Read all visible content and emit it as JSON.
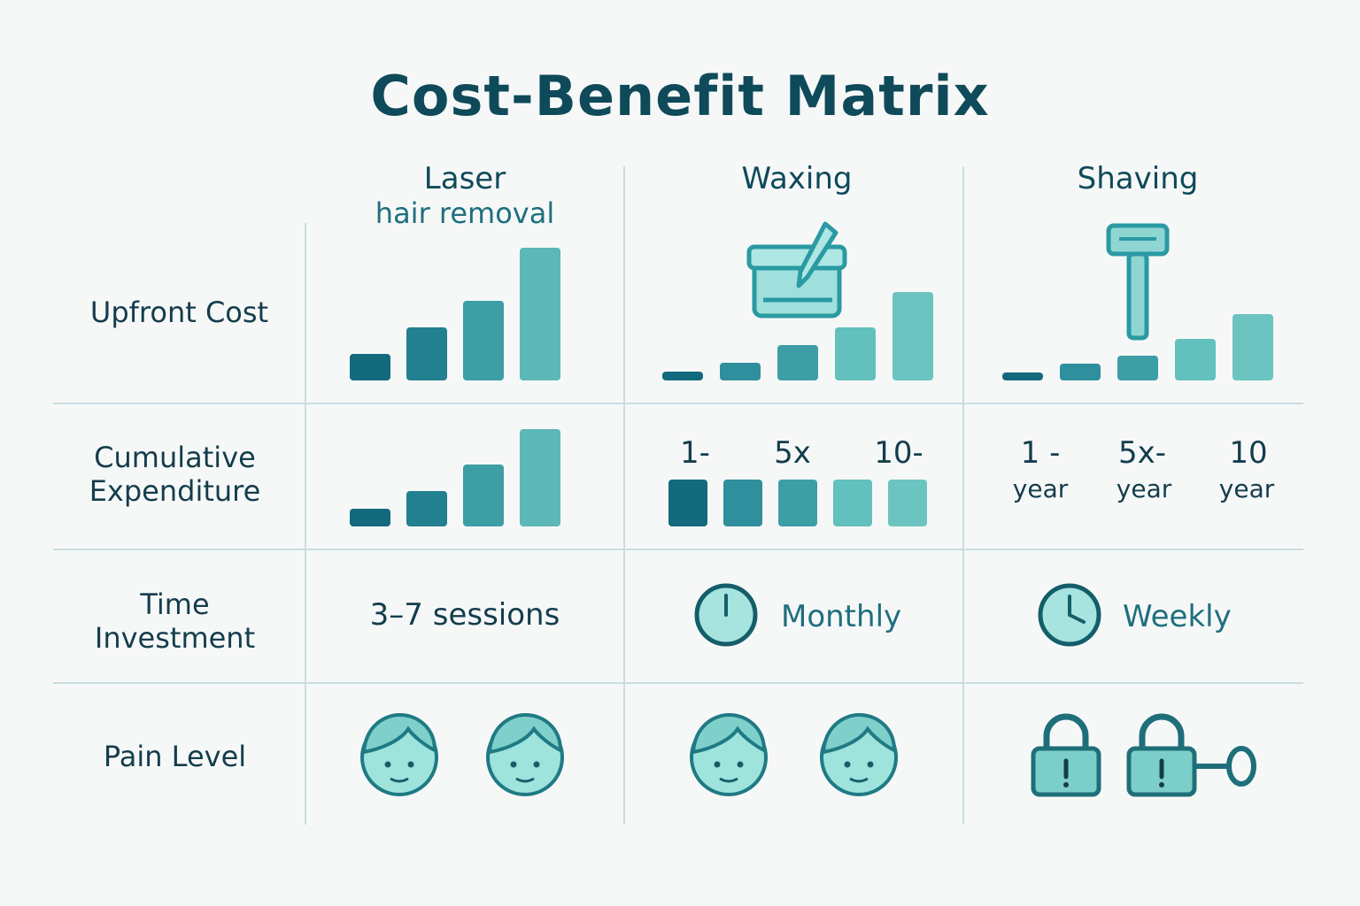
{
  "title": "Cost-Benefit Matrix",
  "columns": [
    {
      "name": "Laser",
      "subtitle": "hair removal"
    },
    {
      "name": "Waxing",
      "subtitle": ""
    },
    {
      "name": "Shaving",
      "subtitle": ""
    }
  ],
  "rows": [
    {
      "label_line1": "Upfront Cost",
      "label_line2": ""
    },
    {
      "label_line1": "Cumulative",
      "label_line2": "Expenditure"
    },
    {
      "label_line1": "Time",
      "label_line2": "Investment"
    },
    {
      "label_line1": "Pain Level",
      "label_line2": ""
    }
  ],
  "time_investment": {
    "laser": "3–7 sessions",
    "waxing": "Monthly",
    "shaving": "Weekly"
  },
  "cumulative_labels": {
    "waxing": [
      "1-",
      "5x",
      "10-"
    ],
    "shaving": [
      "1 -",
      "5x-",
      "10"
    ],
    "shaving_units": [
      "year",
      "year",
      "year"
    ]
  },
  "chart_data": [
    {
      "type": "bar",
      "name": "Laser upfront cost",
      "values": [
        3,
        6,
        9,
        15
      ]
    },
    {
      "type": "bar",
      "name": "Waxing upfront cost",
      "values": [
        1,
        2,
        4,
        6,
        10
      ]
    },
    {
      "type": "bar",
      "name": "Shaving upfront cost",
      "values": [
        1,
        2,
        3,
        5,
        8
      ]
    },
    {
      "type": "bar",
      "name": "Laser cumulative expenditure",
      "values": [
        2,
        4,
        7,
        11
      ]
    },
    {
      "type": "bar",
      "name": "Waxing cumulative expenditure",
      "values": [
        5,
        5,
        5,
        5,
        5
      ]
    }
  ],
  "pain_level": {
    "laser": 2,
    "waxing": 2,
    "shaving": 2
  },
  "colors": {
    "dark": "#136a7c",
    "mid": "#2f8f9c",
    "light": "#5bb8b6",
    "icon_fill": "#7fd3d0",
    "icon_stroke": "#1f7a84"
  }
}
